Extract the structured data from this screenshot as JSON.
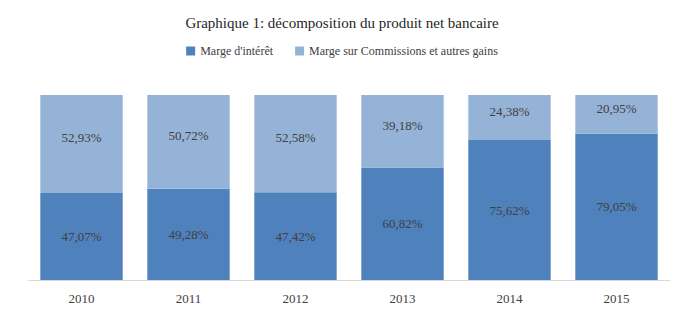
{
  "chart_data": {
    "type": "bar",
    "title": "Graphique 1: décomposition du produit net bancaire",
    "categories": [
      "2010",
      "2011",
      "2012",
      "2013",
      "2014",
      "2015"
    ],
    "series": [
      {
        "name": "Marge d'intérêt",
        "color": "#4f81bd",
        "values": [
          47.07,
          49.28,
          47.42,
          60.82,
          75.62,
          79.05
        ],
        "value_labels": [
          "47,07%",
          "49,28%",
          "47,42%",
          "60,82%",
          "75,62%",
          "79,05%"
        ]
      },
      {
        "name": "Marge sur Commissions et autres gains",
        "color": "#95b3d7",
        "values": [
          52.93,
          50.72,
          52.58,
          39.18,
          24.38,
          20.95
        ],
        "value_labels": [
          "52,93%",
          "50,72%",
          "52,58%",
          "39,18%",
          "24,38%",
          "20,95%"
        ]
      }
    ],
    "ylim": [
      0,
      100
    ],
    "stacked": true,
    "data_labels": true,
    "legend": "top",
    "grid": false,
    "tick_labels": "x"
  }
}
